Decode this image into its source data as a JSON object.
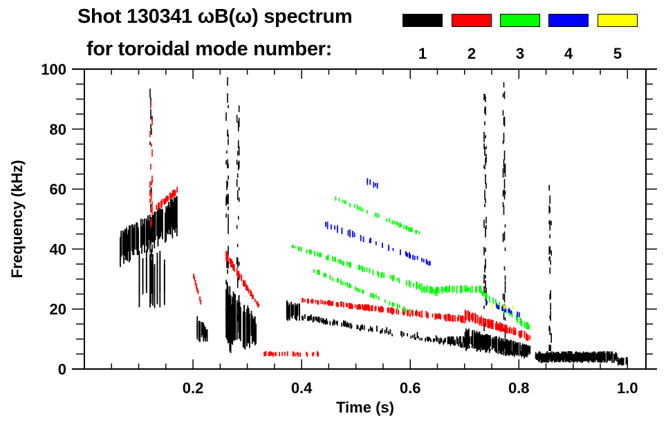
{
  "chart_data": {
    "type": "heatmap",
    "title_line1": "Shot 130341 ωB(ω) spectrum",
    "title_line2": "for toroidal mode number:",
    "xlabel": "Time (s)",
    "ylabel": "Frequency (kHz)",
    "xlim": [
      0,
      1.034
    ],
    "ylim": [
      0,
      100
    ],
    "xticks": [
      0.2,
      0.4,
      0.6,
      0.8,
      1.0
    ],
    "xtick_labels": [
      "0.2",
      "0.4",
      "0.6",
      "0.8",
      "1.0"
    ],
    "xminor_step": 0.05,
    "yticks": [
      0,
      20,
      40,
      60,
      80,
      100
    ],
    "ytick_labels": [
      "0",
      "20",
      "40",
      "60",
      "80",
      "100"
    ],
    "yminor_step": 5,
    "grid": false,
    "legend": {
      "placement": "top-right",
      "entries": [
        {
          "mode": "1",
          "color": "#000000"
        },
        {
          "mode": "2",
          "color": "#ff0000"
        },
        {
          "mode": "3",
          "color": "#00ff00"
        },
        {
          "mode": "4",
          "color": "#0000ff"
        },
        {
          "mode": "5",
          "color": "#ffff00"
        }
      ]
    },
    "features": [
      {
        "mode": 1,
        "kind": "blob",
        "t": [
          0.065,
          0.17
        ],
        "f_start": [
          34,
          46
        ],
        "f_end": [
          44,
          58
        ],
        "density": 0.85
      },
      {
        "mode": 1,
        "kind": "blob",
        "t": [
          0.1,
          0.15
        ],
        "f_start": [
          20,
          40
        ],
        "f_end": [
          20,
          40
        ],
        "density": 0.3
      },
      {
        "mode": 1,
        "kind": "blob",
        "t": [
          0.205,
          0.225
        ],
        "f_start": [
          9,
          18
        ],
        "f_end": [
          9,
          14
        ],
        "density": 0.8
      },
      {
        "mode": 1,
        "kind": "blob",
        "t": [
          0.26,
          0.315
        ],
        "f_start": [
          5,
          30
        ],
        "f_end": [
          7,
          18
        ],
        "density": 0.9
      },
      {
        "mode": 1,
        "kind": "blob",
        "t": [
          0.37,
          0.395
        ],
        "f_start": [
          16,
          23
        ],
        "f_end": [
          16,
          22
        ],
        "density": 0.8
      },
      {
        "mode": 1,
        "kind": "blob",
        "t": [
          0.7,
          0.82
        ],
        "f_start": [
          6,
          14
        ],
        "f_end": [
          4,
          8
        ],
        "density": 0.95
      },
      {
        "mode": 1,
        "kind": "blob",
        "t": [
          0.66,
          0.72
        ],
        "f_start": [
          8,
          11
        ],
        "f_end": [
          8,
          11
        ],
        "density": 0.7
      },
      {
        "mode": 1,
        "kind": "blob",
        "t": [
          0.83,
          0.98
        ],
        "f_start": [
          2,
          6
        ],
        "f_end": [
          2,
          6
        ],
        "density": 0.98
      },
      {
        "mode": 1,
        "kind": "blob",
        "t": [
          0.98,
          1.0
        ],
        "f_start": [
          1,
          4
        ],
        "f_end": [
          1,
          4
        ],
        "density": 0.7
      },
      {
        "mode": 1,
        "kind": "chain",
        "t": [
          0.4,
          0.82
        ],
        "f_start": [
          16,
          18
        ],
        "f_end": [
          3,
          5
        ],
        "density": 0.5
      },
      {
        "mode": 1,
        "kind": "vline",
        "t": [
          0.12,
          0.125
        ],
        "f_start": [
          30,
          92
        ],
        "f_end": [
          30,
          92
        ],
        "density": 0.25
      },
      {
        "mode": 1,
        "kind": "vline",
        "t": [
          0.26,
          0.265
        ],
        "f_start": [
          10,
          96
        ],
        "f_end": [
          10,
          96
        ],
        "density": 0.3
      },
      {
        "mode": 1,
        "kind": "vline",
        "t": [
          0.28,
          0.285
        ],
        "f_start": [
          10,
          86
        ],
        "f_end": [
          10,
          86
        ],
        "density": 0.35
      },
      {
        "mode": 1,
        "kind": "vline",
        "t": [
          0.735,
          0.74
        ],
        "f_start": [
          8,
          93
        ],
        "f_end": [
          8,
          93
        ],
        "density": 0.35
      },
      {
        "mode": 1,
        "kind": "vline",
        "t": [
          0.77,
          0.775
        ],
        "f_start": [
          10,
          94
        ],
        "f_end": [
          10,
          94
        ],
        "density": 0.35
      },
      {
        "mode": 1,
        "kind": "vline",
        "t": [
          0.855,
          0.86
        ],
        "f_start": [
          6,
          61
        ],
        "f_end": [
          6,
          61
        ],
        "density": 0.4
      },
      {
        "mode": 2,
        "kind": "band",
        "t": [
          0.13,
          0.17
        ],
        "f_start": [
          52,
          55
        ],
        "f_end": [
          58,
          61
        ],
        "density": 0.8
      },
      {
        "mode": 2,
        "kind": "band",
        "t": [
          0.2,
          0.215
        ],
        "f_start": [
          30,
          32
        ],
        "f_end": [
          20,
          22
        ],
        "density": 0.8
      },
      {
        "mode": 2,
        "kind": "band",
        "t": [
          0.26,
          0.32
        ],
        "f_start": [
          36,
          40
        ],
        "f_end": [
          20,
          22
        ],
        "density": 0.8
      },
      {
        "mode": 2,
        "kind": "band",
        "t": [
          0.4,
          0.7
        ],
        "f_start": [
          22,
          24
        ],
        "f_end": [
          15,
          18
        ],
        "density": 0.6
      },
      {
        "mode": 2,
        "kind": "band",
        "t": [
          0.7,
          0.82
        ],
        "f_start": [
          16,
          20
        ],
        "f_end": [
          9,
          12
        ],
        "density": 0.75
      },
      {
        "mode": 2,
        "kind": "band",
        "t": [
          0.32,
          0.43
        ],
        "f_start": [
          4,
          6
        ],
        "f_end": [
          4,
          6
        ],
        "density": 0.4
      },
      {
        "mode": 2,
        "kind": "vline",
        "t": [
          0.12,
          0.125
        ],
        "f_start": [
          45,
          88
        ],
        "f_end": [
          45,
          88
        ],
        "density": 0.25
      },
      {
        "mode": 3,
        "kind": "band",
        "t": [
          0.38,
          0.65
        ],
        "f_start": [
          40,
          42
        ],
        "f_end": [
          24,
          27
        ],
        "density": 0.45
      },
      {
        "mode": 3,
        "kind": "band",
        "t": [
          0.62,
          0.73
        ],
        "f_start": [
          25,
          28
        ],
        "f_end": [
          25,
          28
        ],
        "density": 0.55
      },
      {
        "mode": 3,
        "kind": "band",
        "t": [
          0.73,
          0.82
        ],
        "f_start": [
          24,
          27
        ],
        "f_end": [
          12,
          15
        ],
        "density": 0.55
      },
      {
        "mode": 3,
        "kind": "band",
        "t": [
          0.42,
          0.6
        ],
        "f_start": [
          32,
          34
        ],
        "f_end": [
          18,
          20
        ],
        "density": 0.35
      },
      {
        "mode": 3,
        "kind": "band",
        "t": [
          0.46,
          0.62
        ],
        "f_start": [
          56,
          58
        ],
        "f_end": [
          44,
          46
        ],
        "density": 0.35
      },
      {
        "mode": 4,
        "kind": "band",
        "t": [
          0.44,
          0.64
        ],
        "f_start": [
          47,
          50
        ],
        "f_end": [
          34,
          36
        ],
        "density": 0.2
      },
      {
        "mode": 4,
        "kind": "band",
        "t": [
          0.52,
          0.54
        ],
        "f_start": [
          61,
          64
        ],
        "f_end": [
          60,
          62
        ],
        "density": 0.4
      },
      {
        "mode": 4,
        "kind": "band",
        "t": [
          0.73,
          0.8
        ],
        "f_start": [
          22,
          24
        ],
        "f_end": [
          17,
          19
        ],
        "density": 0.4
      },
      {
        "mode": 5,
        "kind": "band",
        "t": [
          0.75,
          0.8
        ],
        "f_start": [
          20,
          22
        ],
        "f_end": [
          19,
          21
        ],
        "density": 0.12
      }
    ]
  }
}
